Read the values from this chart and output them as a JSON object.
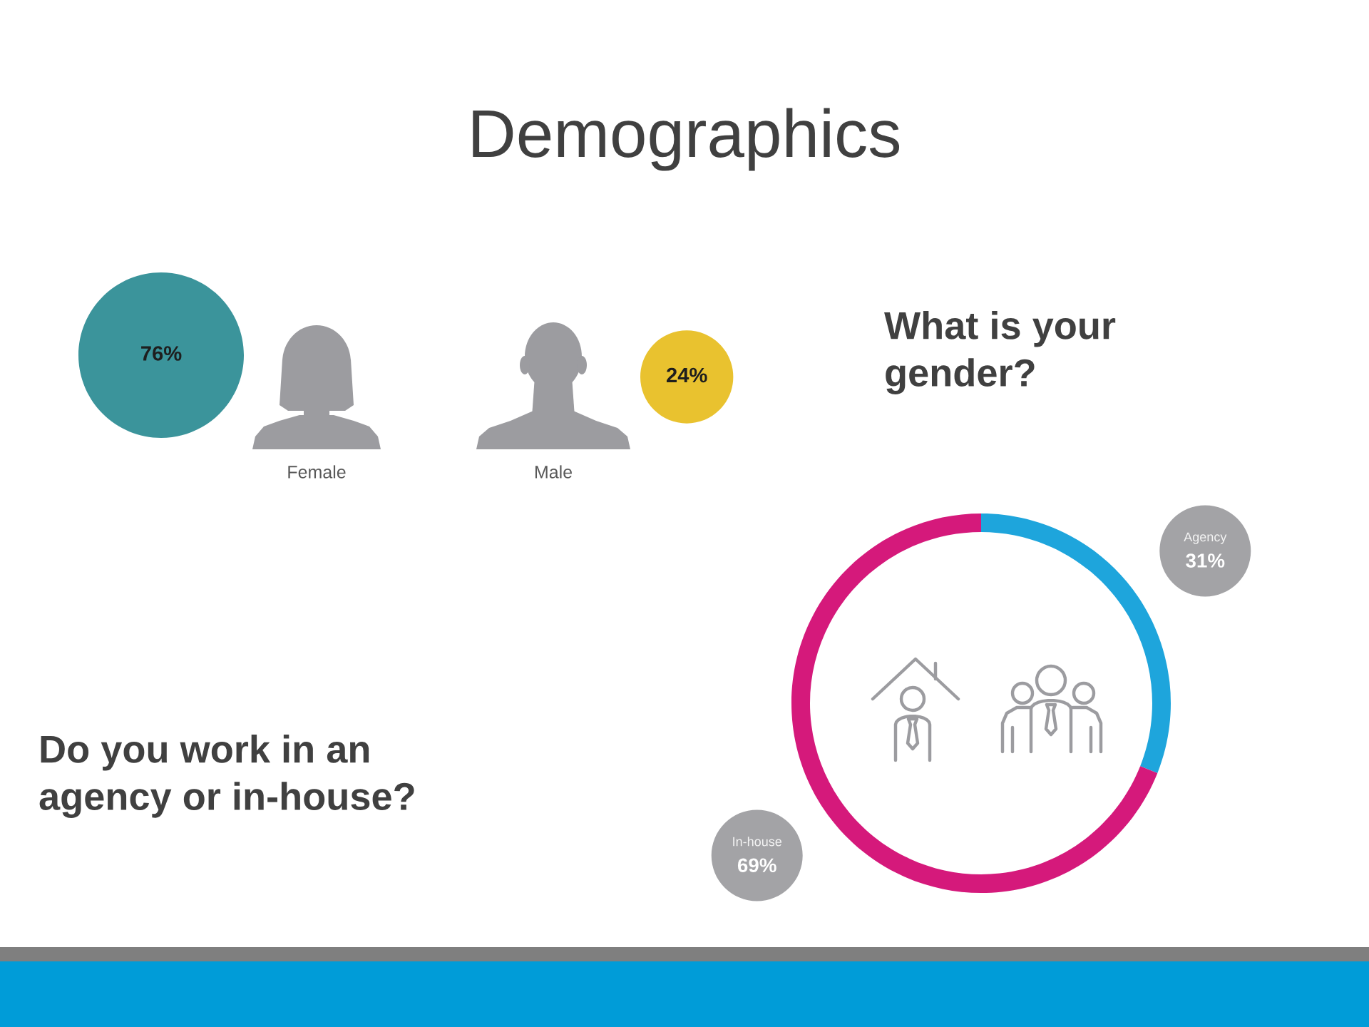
{
  "chart_data": [
    {
      "type": "other",
      "title": "Demographics",
      "subtitle": "What is your gender?",
      "categories": [
        "Female",
        "Male"
      ],
      "values": [
        76,
        24
      ],
      "value_labels": [
        "76%",
        "24%"
      ],
      "colors": [
        "#3b949b",
        "#e9c22f"
      ]
    },
    {
      "type": "donut",
      "title": "Do you work in an agency or in-house?",
      "categories": [
        "Agency",
        "In-house"
      ],
      "values": [
        31,
        69
      ],
      "value_labels": [
        "31%",
        "69%"
      ],
      "colors": [
        "#1ea5dc",
        "#d5197b"
      ]
    }
  ]
}
